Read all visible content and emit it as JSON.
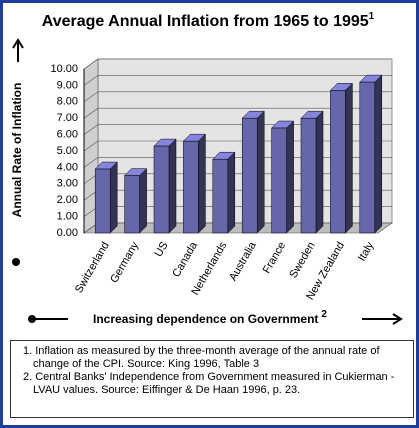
{
  "chart_data": {
    "type": "bar3d",
    "title": "Average Annual Inflation from 1965 to 1995",
    "title_note": "1",
    "y_label": "Annual Rate of Inflation",
    "x_label": "Increasing dependence on Government",
    "x_label_note": "2",
    "categories": [
      "Switzerland",
      "Germany",
      "US",
      "Canada",
      "Netherlands",
      "Australia",
      "France",
      "Sweden",
      "New Zealand",
      "Italy"
    ],
    "values": [
      3.9,
      3.5,
      5.3,
      5.6,
      4.5,
      7.0,
      6.4,
      7.0,
      8.7,
      9.2
    ],
    "color": "#6666aa",
    "ylim": [
      0,
      10
    ],
    "yticks": [
      {
        "value": 0,
        "label": "0.00"
      },
      {
        "value": 1,
        "label": "1.00"
      },
      {
        "value": 2,
        "label": "2.00"
      },
      {
        "value": 3,
        "label": "3.00"
      },
      {
        "value": 4,
        "label": "4.00"
      },
      {
        "value": 5,
        "label": "5.00"
      },
      {
        "value": 6,
        "label": "6.00"
      },
      {
        "value": 7,
        "label": "7.00"
      },
      {
        "value": 8,
        "label": "8.00"
      },
      {
        "value": 9,
        "label": "9.00"
      },
      {
        "value": 10,
        "label": "10.00"
      }
    ],
    "grid": true,
    "footnotes": [
      "1. Inflation as measured by the three-month average of the annual rate of change of the CPI. Source: King 1996, Table 3",
      "2. Central Banks' Independence from Government measured in Cukierman - LVAU values. Source: Eiffinger & De Haan 1996, p. 23."
    ]
  }
}
